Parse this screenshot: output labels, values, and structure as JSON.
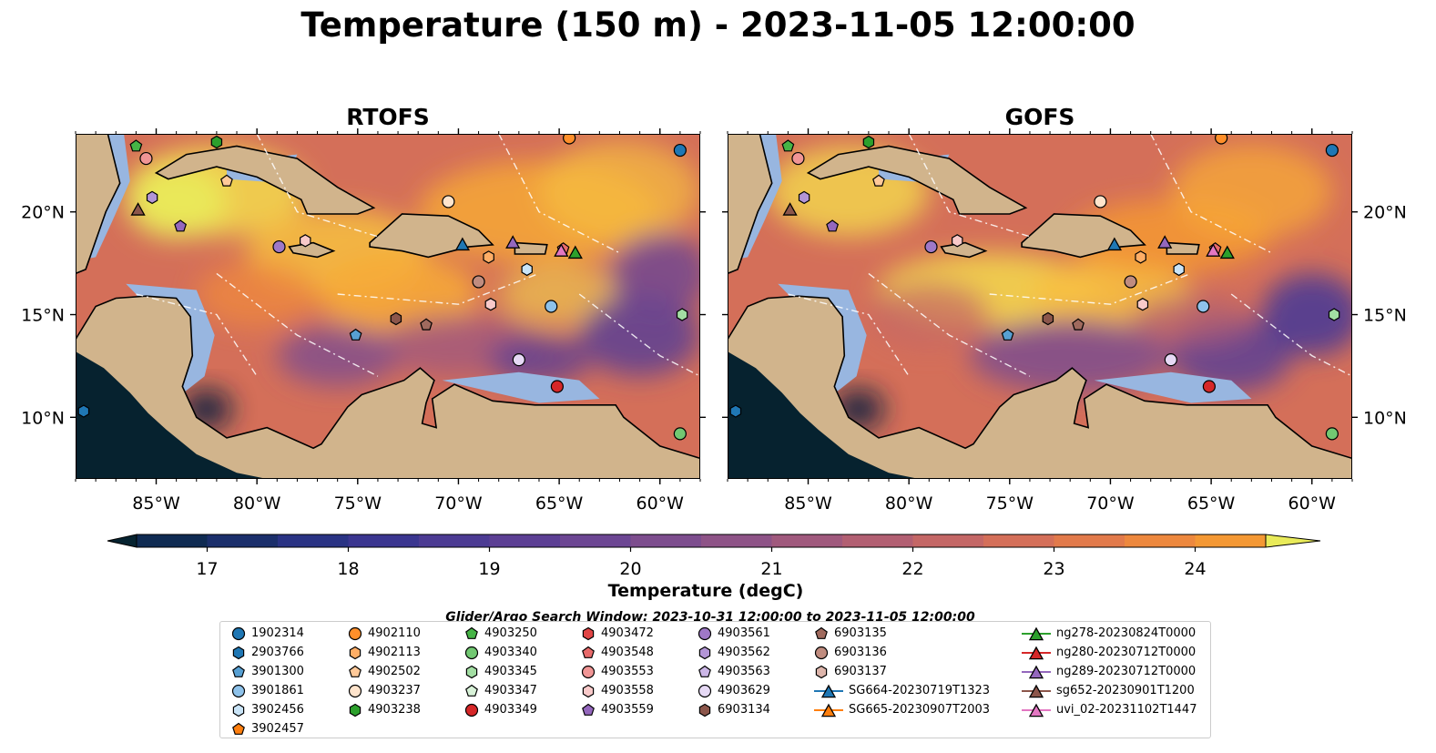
{
  "title": "Temperature (150 m) - 2023-11-05 12:00:00",
  "panels": [
    {
      "title": "RTOFS",
      "hot_zone": "north"
    },
    {
      "title": "GOFS",
      "hot_zone": "center"
    }
  ],
  "lon_ticks": [
    "85°W",
    "80°W",
    "75°W",
    "70°W",
    "65°W",
    "60°W"
  ],
  "lon_tick_values": [
    -85,
    -80,
    -75,
    -70,
    -65,
    -60
  ],
  "lat_ticks": [
    "20°N",
    "15°N",
    "10°N"
  ],
  "lat_tick_values": [
    20,
    15,
    10
  ],
  "extent": {
    "lon_min": -89,
    "lon_max": -58,
    "lat_min": 7,
    "lat_max": 23.8
  },
  "colorbar": {
    "label": "Temperature (degC)",
    "min": 16.5,
    "max": 24.5,
    "step": 0.5,
    "ticks": [
      "17",
      "18",
      "19",
      "20",
      "21",
      "22",
      "23",
      "24"
    ],
    "tick_values": [
      17,
      18,
      19,
      20,
      21,
      22,
      23,
      24
    ],
    "colors": [
      "#062330",
      "#0f2b52",
      "#1b2f6b",
      "#2a3384",
      "#3b3690",
      "#4c3b93",
      "#5c3f94",
      "#6c4693",
      "#7d4d8e",
      "#8e5387",
      "#a0597d",
      "#b25f72",
      "#c46766",
      "#d46f59",
      "#e27a4b",
      "#ed883e",
      "#f49834",
      "#f8ab36",
      "#f7bf40",
      "#f2d44c",
      "#e9eb5a"
    ]
  },
  "search_window": "Glider/Argo Search Window: 2023-10-31 12:00:00 to 2023-11-05 12:00:00",
  "legend": [
    {
      "label": "1902314",
      "marker": "circle",
      "color": "#1f77b4"
    },
    {
      "label": "2903766",
      "marker": "hexagon",
      "color": "#1f77b4"
    },
    {
      "label": "3901300",
      "marker": "pentagon",
      "color": "#57a0d3"
    },
    {
      "label": "3901861",
      "marker": "circle",
      "color": "#8ec2ea"
    },
    {
      "label": "3902456",
      "marker": "hexagon",
      "color": "#c9e4f7"
    },
    {
      "label": "3902457",
      "marker": "pentagon",
      "color": "#ff7f0e"
    },
    {
      "label": "4902110",
      "marker": "circle",
      "color": "#ff8f2a"
    },
    {
      "label": "4902113",
      "marker": "hexagon",
      "color": "#ffae66"
    },
    {
      "label": "4902502",
      "marker": "pentagon",
      "color": "#ffc999"
    },
    {
      "label": "4903237",
      "marker": "circle",
      "color": "#ffe4cc"
    },
    {
      "label": "4903238",
      "marker": "hexagon",
      "color": "#2ca02c"
    },
    {
      "label": "4903250",
      "marker": "pentagon",
      "color": "#46b446"
    },
    {
      "label": "4903340",
      "marker": "circle",
      "color": "#72c872"
    },
    {
      "label": "4903345",
      "marker": "hexagon",
      "color": "#a3dea3"
    },
    {
      "label": "4903347",
      "marker": "pentagon",
      "color": "#d8f2d8"
    },
    {
      "label": "4903349",
      "marker": "circle",
      "color": "#d62728"
    },
    {
      "label": "4903472",
      "marker": "hexagon",
      "color": "#e04545"
    },
    {
      "label": "4903548",
      "marker": "pentagon",
      "color": "#e86a6a"
    },
    {
      "label": "4903553",
      "marker": "circle",
      "color": "#f09595"
    },
    {
      "label": "4903558",
      "marker": "hexagon",
      "color": "#f8c9c9"
    },
    {
      "label": "4903559",
      "marker": "pentagon",
      "color": "#9467bd"
    },
    {
      "label": "4903561",
      "marker": "circle",
      "color": "#9f78c7"
    },
    {
      "label": "4903562",
      "marker": "hexagon",
      "color": "#b395d6"
    },
    {
      "label": "4903563",
      "marker": "pentagon",
      "color": "#cbb6e6"
    },
    {
      "label": "4903629",
      "marker": "circle",
      "color": "#e6d9f5"
    },
    {
      "label": "6903134",
      "marker": "hexagon",
      "color": "#8c564b"
    },
    {
      "label": "6903135",
      "marker": "pentagon",
      "color": "#a06a5e"
    },
    {
      "label": "6903136",
      "marker": "circle",
      "color": "#c08c7f"
    },
    {
      "label": "6903137",
      "marker": "hexagon",
      "color": "#ddb5ab"
    },
    {
      "label": "SG664-20230719T1323",
      "marker": "triangle-line",
      "color": "#1f77b4"
    },
    {
      "label": "SG665-20230907T2003",
      "marker": "triangle-line",
      "color": "#ff7f0e"
    },
    {
      "label": "ng278-20230824T0000",
      "marker": "triangle-line",
      "color": "#2ca02c"
    },
    {
      "label": "ng280-20230712T0000",
      "marker": "triangle-line",
      "color": "#d62728"
    },
    {
      "label": "ng289-20230712T0000",
      "marker": "triangle-line",
      "color": "#9467bd"
    },
    {
      "label": "sg652-20230901T1200",
      "marker": "triangle-line",
      "color": "#8c564b"
    },
    {
      "label": "uvi_02-20231102T1447",
      "marker": "triangle-line",
      "color": "#e377c2"
    }
  ],
  "observations": [
    {
      "id": "1902314",
      "lon": -59.0,
      "lat": 23.0
    },
    {
      "id": "4902110",
      "lon": -64.5,
      "lat": 23.6
    },
    {
      "id": "4903238",
      "lon": -82.0,
      "lat": 23.4
    },
    {
      "id": "4903250",
      "lon": -86.0,
      "lat": 23.2
    },
    {
      "id": "4903553",
      "lon": -85.5,
      "lat": 22.6
    },
    {
      "id": "4902502",
      "lon": -81.5,
      "lat": 21.5
    },
    {
      "id": "4903562",
      "lon": -85.2,
      "lat": 20.7
    },
    {
      "id": "4903559",
      "lon": -83.8,
      "lat": 19.3
    },
    {
      "id": "4903561",
      "lon": -78.9,
      "lat": 18.3
    },
    {
      "id": "4903558",
      "lon": -77.6,
      "lat": 18.6
    },
    {
      "id": "4902113",
      "lon": -68.5,
      "lat": 17.8
    },
    {
      "id": "3902456",
      "lon": -66.6,
      "lat": 17.2
    },
    {
      "id": "4903548",
      "lon": -64.8,
      "lat": 18.2
    },
    {
      "id": "6903136",
      "lon": -69.0,
      "lat": 16.6
    },
    {
      "id": "4903558b",
      "lon": -68.4,
      "lat": 15.5
    },
    {
      "id": "3901861",
      "lon": -65.4,
      "lat": 15.4
    },
    {
      "id": "4903345",
      "lon": -58.9,
      "lat": 15.0
    },
    {
      "id": "6903134",
      "lon": -73.1,
      "lat": 14.8
    },
    {
      "id": "6903135",
      "lon": -71.6,
      "lat": 14.5
    },
    {
      "id": "3901300",
      "lon": -75.1,
      "lat": 14.0
    },
    {
      "id": "4903629",
      "lon": -67.0,
      "lat": 12.8
    },
    {
      "id": "4903349",
      "lon": -65.1,
      "lat": 11.5
    },
    {
      "id": "4903340",
      "lon": -59.0,
      "lat": 9.2
    },
    {
      "id": "2903766",
      "lon": -88.6,
      "lat": 10.3
    },
    {
      "id": "4903237",
      "lon": -70.5,
      "lat": 20.5
    },
    {
      "id": "ng278",
      "lon": -64.2,
      "lat": 18.0,
      "glider": true
    },
    {
      "id": "ng289",
      "lon": -67.3,
      "lat": 18.5,
      "glider": true
    },
    {
      "id": "SG664",
      "lon": -69.8,
      "lat": 18.4,
      "glider": true
    },
    {
      "id": "sg652",
      "lon": -85.9,
      "lat": 20.1,
      "glider": true
    },
    {
      "id": "uvi_02",
      "lon": -64.9,
      "lat": 18.1,
      "glider": true
    }
  ]
}
